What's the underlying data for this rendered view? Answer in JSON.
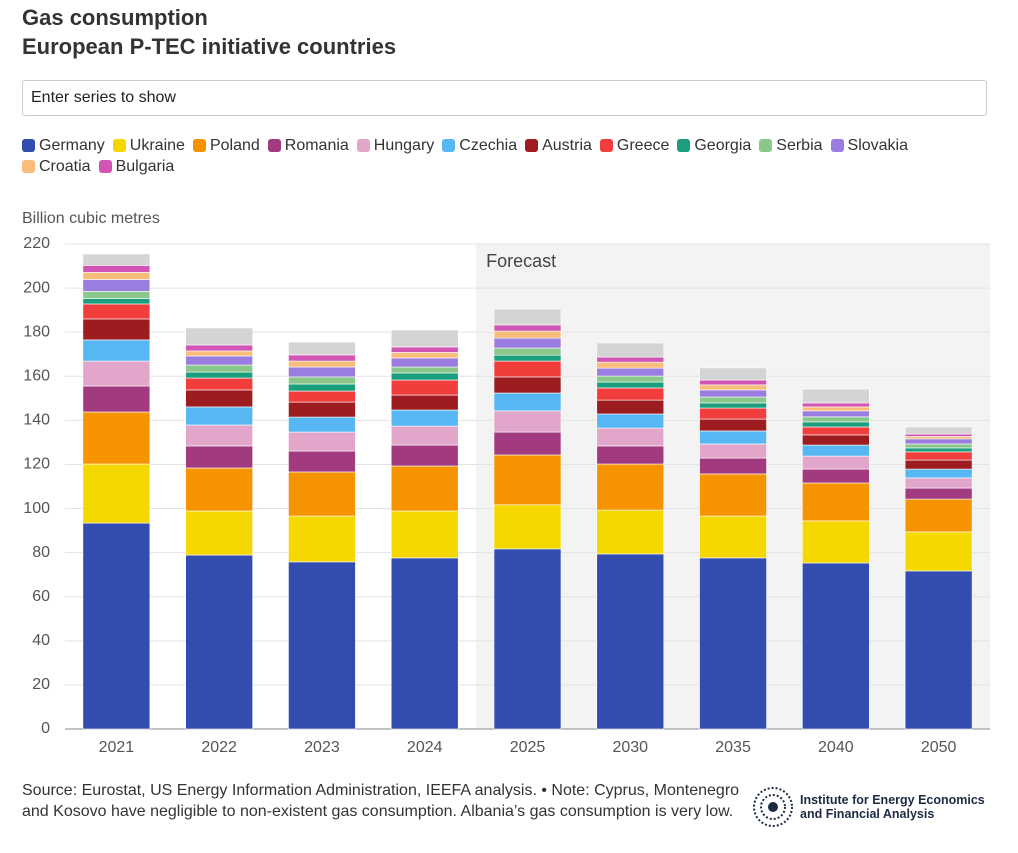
{
  "search_placeholder": "Enter series to show",
  "source": "Source: Eurostat, US Energy Information Administration, IEEFA analysis. • Note: Cyprus, Montenegro and Kosovo have negligible to non-existent gas consumption. Albania’s gas consumption is very low.",
  "logo": "Institute for Energy Economics and Financial Analysis",
  "chart_data": {
    "type": "stacked_bar",
    "title": "Gas consumption",
    "subtitle": "European P-TEC initiative countries",
    "y_label": "Billion cubic metres",
    "forecast": {
      "label": "Forecast",
      "start": "2025"
    },
    "categories": [
      "2021",
      "2022",
      "2023",
      "2024",
      "2025",
      "2030",
      "2035",
      "2040",
      "2050"
    ],
    "series": [
      {
        "name": "Germany",
        "color": "#334cb0",
        "values": [
          93.4,
          78.9,
          75.8,
          77.6,
          81.7,
          79.4,
          77.6,
          75.3,
          71.7
        ]
      },
      {
        "name": "Ukraine",
        "color": "#f5d800",
        "values": [
          26.8,
          20.0,
          20.8,
          21.3,
          20.0,
          19.9,
          19.0,
          19.1,
          17.7
        ]
      },
      {
        "name": "Poland",
        "color": "#f59300",
        "values": [
          23.6,
          19.5,
          20.0,
          20.4,
          22.6,
          20.9,
          19.1,
          17.2,
          14.9
        ]
      },
      {
        "name": "Romania",
        "color": "#a23a80",
        "values": [
          11.8,
          10.0,
          9.5,
          9.5,
          10.4,
          8.2,
          7.2,
          6.3,
          5.0
        ]
      },
      {
        "name": "Hungary",
        "color": "#e3a6cb",
        "values": [
          11.3,
          9.5,
          8.6,
          8.6,
          9.6,
          8.1,
          6.4,
          5.9,
          4.6
        ]
      },
      {
        "name": "Czechia",
        "color": "#56b7f2",
        "values": [
          9.6,
          8.2,
          6.8,
          7.3,
          8.1,
          6.4,
          5.9,
          5.0,
          4.0
        ]
      },
      {
        "name": "Austria",
        "color": "#9d1c1f",
        "values": [
          9.5,
          7.7,
          6.8,
          6.8,
          7.3,
          6.3,
          5.4,
          4.6,
          4.1
        ]
      },
      {
        "name": "Greece",
        "color": "#f23d3d",
        "values": [
          6.8,
          5.4,
          5.0,
          6.8,
          7.2,
          5.5,
          5.0,
          3.6,
          3.7
        ]
      },
      {
        "name": "Georgia",
        "color": "#1a9e7d",
        "values": [
          2.5,
          2.7,
          3.2,
          3.2,
          2.7,
          2.7,
          2.3,
          2.3,
          1.8
        ]
      },
      {
        "name": "Serbia",
        "color": "#8ac78a",
        "values": [
          3.2,
          3.2,
          3.2,
          2.7,
          3.2,
          2.7,
          2.7,
          2.3,
          1.8
        ]
      },
      {
        "name": "Slovakia",
        "color": "#9b7ce0",
        "values": [
          5.4,
          4.1,
          4.5,
          4.1,
          4.5,
          3.6,
          3.2,
          2.7,
          2.3
        ]
      },
      {
        "name": "Croatia",
        "color": "#f8bd7a",
        "values": [
          3.2,
          2.3,
          2.7,
          2.5,
          3.2,
          2.7,
          2.3,
          1.8,
          1.1
        ]
      },
      {
        "name": "Bulgaria",
        "color": "#d055b5",
        "values": [
          3.2,
          2.7,
          2.8,
          2.5,
          2.8,
          2.3,
          2.2,
          1.8,
          1.1
        ]
      },
      {
        "color": "#d4d4d4",
        "values": [
          5.2,
          7.7,
          5.8,
          7.7,
          7.2,
          6.4,
          5.5,
          6.3,
          3.2
        ]
      }
    ],
    "ylim": [
      0,
      220
    ],
    "yticks": [
      0,
      20,
      40,
      60,
      80,
      100,
      120,
      140,
      160,
      180,
      200,
      220
    ],
    "grid": true
  }
}
